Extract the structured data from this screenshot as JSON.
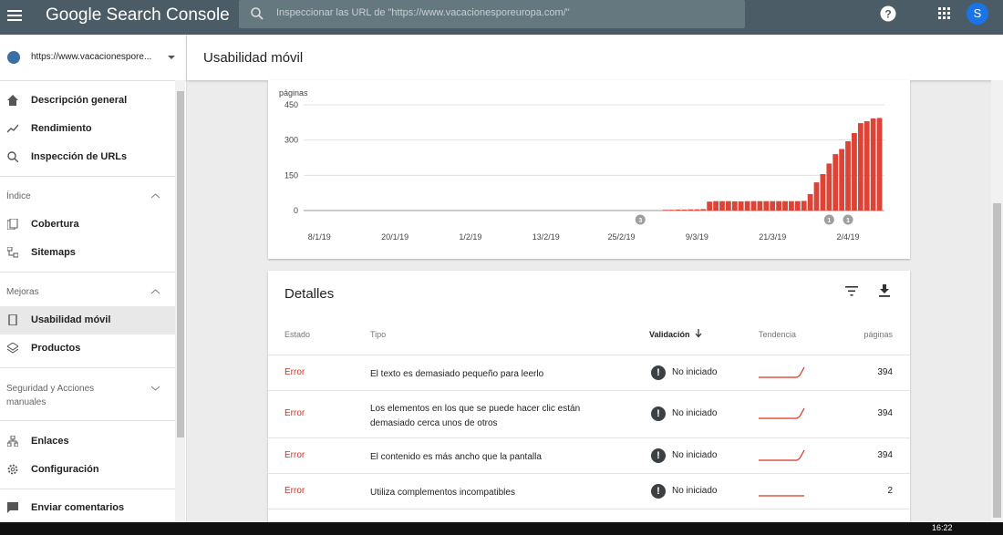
{
  "header": {
    "app_name": "Google Search Console",
    "search_placeholder": "Inspeccionar las URL de \"https://www.vacacionesporeuropa.com/\"",
    "avatar": "S"
  },
  "sidebar": {
    "property": "https://www.vacacionespore...",
    "top_items": [
      "Descripción general",
      "Rendimiento",
      "Inspección de URLs"
    ],
    "sections": [
      {
        "title": "Índice",
        "items": [
          "Cobertura",
          "Sitemaps"
        ]
      },
      {
        "title": "Mejoras",
        "items": [
          "Usabilidad móvil",
          "Productos"
        ]
      },
      {
        "title": "Seguridad y Acciones manuales",
        "items": []
      }
    ],
    "bottom_items": [
      "Enlaces",
      "Configuración"
    ],
    "feedback": "Enviar comentarios"
  },
  "page_title": "Usabilidad móvil",
  "chart_data": {
    "type": "bar",
    "y_label": "páginas",
    "color": "#db4437",
    "categories": [
      null,
      null,
      "8/1/19",
      null,
      null,
      null,
      null,
      null,
      null,
      null,
      null,
      null,
      null,
      null,
      "20/1/19",
      null,
      null,
      null,
      null,
      null,
      null,
      null,
      null,
      null,
      null,
      null,
      "1/2/19",
      null,
      null,
      null,
      null,
      null,
      null,
      null,
      null,
      null,
      null,
      null,
      "13/2/19",
      null,
      null,
      null,
      null,
      null,
      null,
      null,
      null,
      null,
      null,
      null,
      "25/2/19",
      null,
      null,
      null,
      null,
      null,
      null,
      null,
      null,
      null,
      null,
      null,
      "9/3/19",
      null,
      null,
      null,
      null,
      null,
      null,
      null,
      null,
      null,
      null,
      null,
      "21/3/19",
      null,
      null,
      null,
      null,
      null,
      null,
      null,
      null,
      null,
      null,
      null,
      "2/4/19",
      null,
      null,
      null,
      null,
      null
    ],
    "values": [
      0,
      0,
      0,
      0,
      0,
      0,
      0,
      0,
      0,
      0,
      0,
      0,
      0,
      0,
      0,
      0,
      0,
      0,
      0,
      0,
      0,
      0,
      0,
      0,
      0,
      0,
      0,
      0,
      0,
      0,
      0,
      0,
      0,
      0,
      0,
      0,
      0,
      0,
      0,
      0,
      0,
      0,
      0,
      0,
      0,
      0,
      0,
      0,
      0,
      0,
      0,
      0,
      0,
      0,
      0,
      0,
      0,
      3,
      3,
      4,
      4,
      5,
      5,
      6,
      38,
      40,
      40,
      40,
      39,
      39,
      40,
      40,
      40,
      40,
      40,
      40,
      40,
      40,
      40,
      41,
      70,
      120,
      155,
      200,
      240,
      262,
      295,
      330,
      372,
      380,
      392,
      394
    ],
    "ylim": [
      0,
      450
    ],
    "yticks": [
      0,
      150,
      300,
      450
    ],
    "grid": true,
    "annotations": [
      {
        "index": 53,
        "count": 3
      },
      {
        "index": 83,
        "count": 1
      },
      {
        "index": 86,
        "count": 1
      }
    ]
  },
  "details": {
    "title": "Detalles",
    "columns": [
      "Estado",
      "Tipo",
      "Validación",
      "Tendencia",
      "páginas"
    ],
    "rows": [
      {
        "estado": "Error",
        "tipo": "El texto es demasiado pequeño para leerlo",
        "validacion": "No iniciado",
        "paginas": 394
      },
      {
        "estado": "Error",
        "tipo": "Los elementos en los que se puede hacer clic están demasiado cerca unos de otros",
        "validacion": "No iniciado",
        "paginas": 394
      },
      {
        "estado": "Error",
        "tipo": "El contenido es más ancho que la pantalla",
        "validacion": "No iniciado",
        "paginas": 394
      },
      {
        "estado": "Error",
        "tipo": "Utiliza complementos incompatibles",
        "validacion": "No iniciado",
        "paginas": 2
      }
    ]
  },
  "taskbar": {
    "time": "16:22"
  }
}
